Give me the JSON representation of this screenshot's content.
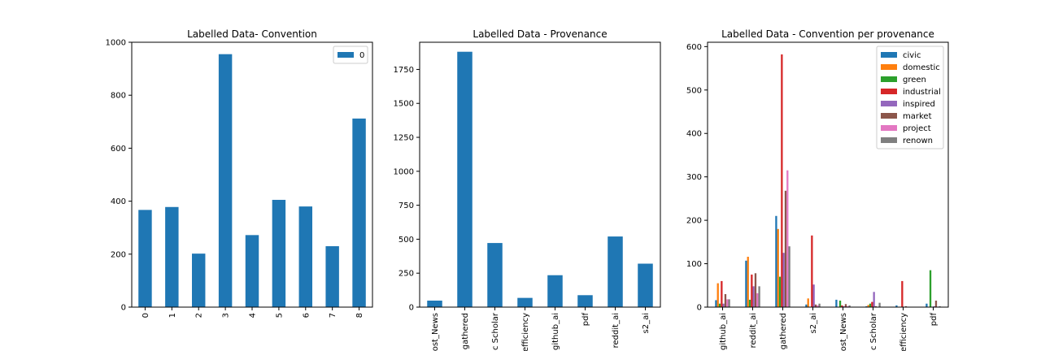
{
  "chart_data": [
    {
      "type": "bar",
      "title": "Labelled Data- Convention",
      "categories": [
        "0",
        "1",
        "2",
        "3",
        "4",
        "5",
        "6",
        "7",
        "8"
      ],
      "series": [
        {
          "name": "0",
          "values": [
            367,
            378,
            202,
            955,
            272,
            405,
            380,
            230,
            712
          ],
          "color": "#1f77b4"
        }
      ],
      "ylim": [
        0,
        1000
      ],
      "yticks": [
        "0",
        "200",
        "400",
        "600",
        "800",
        "1000"
      ],
      "legend": "upper-right"
    },
    {
      "type": "bar",
      "title": "Labelled Data - Provenance",
      "categories": [
        "ost_News",
        "gathered",
        "c Scholar",
        "efficiency",
        "github_ai",
        "pdf",
        "reddit_ai",
        "s2_ai"
      ],
      "series": [
        {
          "values": [
            48,
            1880,
            472,
            68,
            235,
            88,
            520,
            320
          ],
          "color": "#1f77b4"
        }
      ],
      "ylim": [
        0,
        1950
      ],
      "yticks": [
        "0",
        "250",
        "500",
        "750",
        "1000",
        "1250",
        "1500",
        "1750"
      ]
    },
    {
      "type": "bar",
      "title": "Labelled Data - Convention per provenance",
      "categories": [
        "github_ai",
        "reddit_ai",
        "gathered",
        "s2_ai",
        "ost_News",
        "c Scholar",
        "efficiency",
        "pdf"
      ],
      "series": [
        {
          "name": "civic",
          "color": "#1f77b4",
          "values": [
            16,
            107,
            210,
            6,
            17,
            2,
            4,
            8
          ]
        },
        {
          "name": "domestic",
          "color": "#ff7f0e",
          "values": [
            55,
            116,
            180,
            20,
            0,
            5,
            0,
            0
          ]
        },
        {
          "name": "green",
          "color": "#2ca02c",
          "values": [
            8,
            17,
            70,
            0,
            15,
            8,
            0,
            85
          ]
        },
        {
          "name": "industrial",
          "color": "#d62728",
          "values": [
            60,
            75,
            582,
            165,
            4,
            12,
            60,
            0
          ]
        },
        {
          "name": "inspired",
          "color": "#9467bd",
          "values": [
            8,
            48,
            125,
            52,
            2,
            35,
            0,
            2
          ]
        },
        {
          "name": "market",
          "color": "#8c564b",
          "values": [
            30,
            78,
            268,
            6,
            7,
            2,
            2,
            15
          ]
        },
        {
          "name": "project",
          "color": "#e377c2",
          "values": [
            18,
            32,
            315,
            4,
            2,
            0,
            0,
            0
          ]
        },
        {
          "name": "renown",
          "color": "#7f7f7f",
          "values": [
            18,
            48,
            140,
            8,
            4,
            10,
            0,
            2
          ]
        }
      ],
      "ylim": [
        0,
        610
      ],
      "yticks": [
        "0",
        "100",
        "200",
        "300",
        "400",
        "500",
        "600"
      ],
      "legend": "upper-right"
    }
  ]
}
